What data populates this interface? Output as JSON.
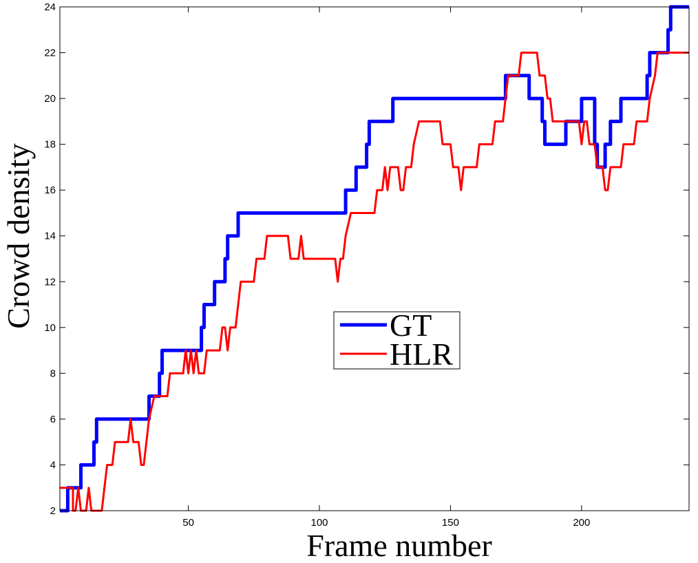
{
  "chart_data": {
    "type": "line",
    "title": "",
    "xlabel": "Frame number",
    "ylabel": "Crowd density",
    "xlim": [
      1,
      241
    ],
    "ylim": [
      2,
      24
    ],
    "xticks": [
      50,
      100,
      150,
      200
    ],
    "yticks": [
      2,
      4,
      6,
      8,
      10,
      12,
      14,
      16,
      18,
      20,
      22,
      24
    ],
    "grid": false,
    "legend_position": "center",
    "series": [
      {
        "name": "GT",
        "color": "#0000ff",
        "points": [
          [
            1,
            2
          ],
          [
            4,
            2
          ],
          [
            4,
            3
          ],
          [
            9,
            3
          ],
          [
            9,
            4
          ],
          [
            14,
            4
          ],
          [
            14,
            5
          ],
          [
            15,
            5
          ],
          [
            15,
            6
          ],
          [
            35,
            6
          ],
          [
            35,
            7
          ],
          [
            39,
            7
          ],
          [
            39,
            8
          ],
          [
            40,
            8
          ],
          [
            40,
            9
          ],
          [
            55,
            9
          ],
          [
            55,
            10
          ],
          [
            56,
            10
          ],
          [
            56,
            11
          ],
          [
            60,
            11
          ],
          [
            60,
            12
          ],
          [
            64,
            12
          ],
          [
            64,
            13
          ],
          [
            65,
            13
          ],
          [
            65,
            14
          ],
          [
            69,
            14
          ],
          [
            69,
            15
          ],
          [
            110,
            15
          ],
          [
            110,
            16
          ],
          [
            114,
            16
          ],
          [
            114,
            17
          ],
          [
            118,
            17
          ],
          [
            118,
            18
          ],
          [
            119,
            18
          ],
          [
            119,
            19
          ],
          [
            128,
            19
          ],
          [
            128,
            20
          ],
          [
            171,
            20
          ],
          [
            171,
            21
          ],
          [
            180,
            21
          ],
          [
            180,
            20
          ],
          [
            185,
            20
          ],
          [
            185,
            19
          ],
          [
            186,
            19
          ],
          [
            186,
            18
          ],
          [
            194,
            18
          ],
          [
            194,
            19
          ],
          [
            200,
            19
          ],
          [
            200,
            20
          ],
          [
            205,
            20
          ],
          [
            205,
            18
          ],
          [
            206,
            18
          ],
          [
            206,
            17
          ],
          [
            209,
            17
          ],
          [
            209,
            18
          ],
          [
            211,
            18
          ],
          [
            211,
            19
          ],
          [
            215,
            19
          ],
          [
            215,
            20
          ],
          [
            225,
            20
          ],
          [
            225,
            21
          ],
          [
            226,
            21
          ],
          [
            226,
            22
          ],
          [
            233,
            22
          ],
          [
            233,
            23
          ],
          [
            234,
            23
          ],
          [
            234,
            24
          ],
          [
            241,
            24
          ]
        ]
      },
      {
        "name": "HLR",
        "color": "#ff0000",
        "points": [
          [
            1,
            3
          ],
          [
            6,
            3
          ],
          [
            6,
            2
          ],
          [
            7,
            2
          ],
          [
            8,
            3
          ],
          [
            9,
            2
          ],
          [
            11,
            2
          ],
          [
            12,
            3
          ],
          [
            13,
            2
          ],
          [
            17,
            2
          ],
          [
            18,
            3
          ],
          [
            19,
            4
          ],
          [
            21,
            4
          ],
          [
            22,
            5
          ],
          [
            27,
            5
          ],
          [
            28,
            6
          ],
          [
            29,
            5
          ],
          [
            31,
            5
          ],
          [
            32,
            4
          ],
          [
            33,
            4
          ],
          [
            34,
            5
          ],
          [
            35,
            6
          ],
          [
            37,
            7
          ],
          [
            42,
            7
          ],
          [
            43,
            8
          ],
          [
            48,
            8
          ],
          [
            49,
            9
          ],
          [
            50,
            8
          ],
          [
            51,
            9
          ],
          [
            52,
            8
          ],
          [
            53,
            9
          ],
          [
            54,
            8
          ],
          [
            56,
            8
          ],
          [
            57,
            9
          ],
          [
            62,
            9
          ],
          [
            63,
            10
          ],
          [
            64,
            10
          ],
          [
            65,
            9
          ],
          [
            66,
            10
          ],
          [
            68,
            10
          ],
          [
            69,
            11
          ],
          [
            70,
            12
          ],
          [
            75,
            12
          ],
          [
            76,
            13
          ],
          [
            79,
            13
          ],
          [
            80,
            14
          ],
          [
            88,
            14
          ],
          [
            89,
            13
          ],
          [
            92,
            13
          ],
          [
            93,
            14
          ],
          [
            94,
            13
          ],
          [
            106,
            13
          ],
          [
            107,
            12
          ],
          [
            108,
            13
          ],
          [
            109,
            13
          ],
          [
            110,
            14
          ],
          [
            112,
            15
          ],
          [
            121,
            15
          ],
          [
            122,
            16
          ],
          [
            124,
            16
          ],
          [
            125,
            17
          ],
          [
            126,
            16
          ],
          [
            127,
            17
          ],
          [
            130,
            17
          ],
          [
            131,
            16
          ],
          [
            132,
            16
          ],
          [
            133,
            17
          ],
          [
            135,
            17
          ],
          [
            136,
            18
          ],
          [
            138,
            19
          ],
          [
            146,
            19
          ],
          [
            147,
            18
          ],
          [
            150,
            18
          ],
          [
            151,
            17
          ],
          [
            153,
            17
          ],
          [
            154,
            16
          ],
          [
            155,
            17
          ],
          [
            160,
            17
          ],
          [
            161,
            18
          ],
          [
            166,
            18
          ],
          [
            167,
            19
          ],
          [
            170,
            19
          ],
          [
            171,
            20
          ],
          [
            172,
            21
          ],
          [
            176,
            21
          ],
          [
            177,
            22
          ],
          [
            183,
            22
          ],
          [
            184,
            21
          ],
          [
            186,
            21
          ],
          [
            187,
            20
          ],
          [
            188,
            20
          ],
          [
            189,
            19
          ],
          [
            199,
            19
          ],
          [
            200,
            18
          ],
          [
            201,
            19
          ],
          [
            202,
            19
          ],
          [
            203,
            18
          ],
          [
            205,
            18
          ],
          [
            206,
            17
          ],
          [
            208,
            17
          ],
          [
            209,
            16
          ],
          [
            210,
            16
          ],
          [
            211,
            17
          ],
          [
            215,
            17
          ],
          [
            216,
            18
          ],
          [
            220,
            18
          ],
          [
            221,
            19
          ],
          [
            225,
            19
          ],
          [
            226,
            20
          ],
          [
            228,
            21
          ],
          [
            229,
            22
          ],
          [
            241,
            22
          ]
        ]
      }
    ]
  }
}
